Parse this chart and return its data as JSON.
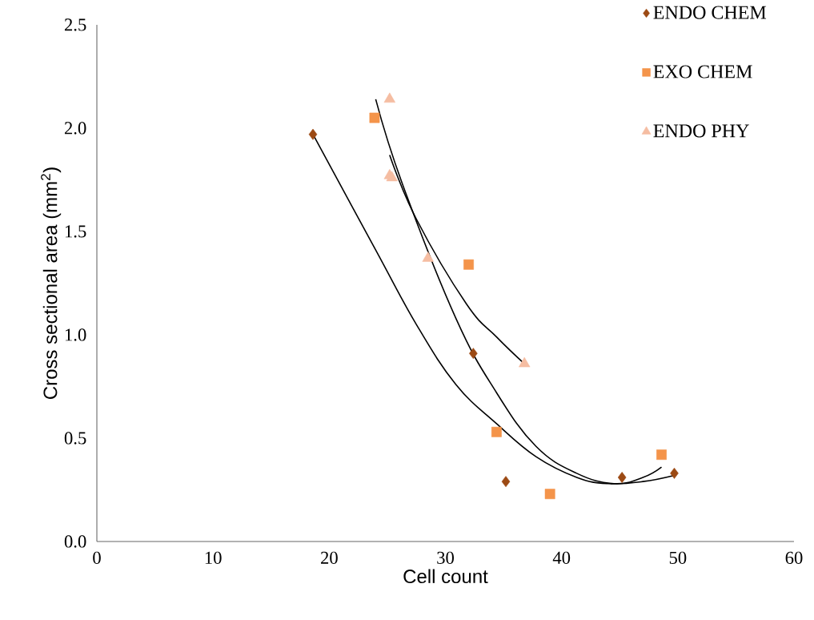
{
  "chart_data": {
    "type": "scatter",
    "xlabel": "Cell count",
    "ylabel": "Cross sectional area (mm$^{2}$)",
    "xlim": [
      0,
      60
    ],
    "xticks": [
      0,
      10,
      20,
      30,
      40,
      50,
      60
    ],
    "ylim": [
      0,
      2.5
    ],
    "yticks": [
      {
        "value": 0,
        "label": "0.0"
      },
      {
        "value": 0.5,
        "label": "0.5"
      },
      {
        "value": 1,
        "label": "1.0"
      },
      {
        "value": 1.5,
        "label": "1.5"
      },
      {
        "value": 2,
        "label": "2.0"
      },
      {
        "value": 2.5,
        "label": "2.5"
      }
    ],
    "grid": false,
    "legend": "top right",
    "series": [
      {
        "name": "ENDO CHEM",
        "marker": "diamond",
        "color": "#9c4a14",
        "x": [
          18.6,
          32.4,
          35.2,
          45.2,
          49.7
        ],
        "values": [
          1.97,
          0.91,
          0.29,
          0.31,
          0.33
        ]
      },
      {
        "name": "EXO CHEM",
        "marker": "square",
        "color": "#f4944a",
        "x": [
          23.9,
          32.0,
          34.4,
          39.0,
          48.6
        ],
        "values": [
          2.05,
          1.34,
          0.53,
          0.23,
          0.42
        ]
      },
      {
        "name": "ENDO PHY",
        "marker": "triangle",
        "color": "#f5bda2",
        "x": [
          25.2,
          25.2,
          25.4,
          28.5,
          36.8
        ],
        "values": [
          2.14,
          1.77,
          1.76,
          1.37,
          0.86
        ]
      },
      {
        "type": "line",
        "marker": "none",
        "line_style": "solid",
        "color": "#000000",
        "x": [
          18.6,
          24.0,
          27.5,
          30.9,
          34.4,
          37.8,
          41.3,
          44.0,
          47.0,
          49.7
        ],
        "values": [
          1.97,
          1.41,
          1.05,
          0.76,
          0.57,
          0.41,
          0.31,
          0.28,
          0.29,
          0.32
        ]
      },
      {
        "type": "line",
        "marker": "none",
        "line_style": "solid",
        "color": "#000000",
        "x": [
          24.0,
          26.3,
          30.9,
          34.4,
          37.8,
          41.3,
          44.5,
          47.0,
          48.6
        ],
        "values": [
          2.14,
          1.73,
          1.08,
          0.72,
          0.46,
          0.33,
          0.28,
          0.31,
          0.36
        ]
      },
      {
        "type": "line",
        "marker": "none",
        "line_style": "solid",
        "color": "#000000",
        "x": [
          25.2,
          27.5,
          31.8,
          34.4,
          36.8
        ],
        "values": [
          1.87,
          1.56,
          1.15,
          0.99,
          0.86
        ]
      }
    ]
  }
}
